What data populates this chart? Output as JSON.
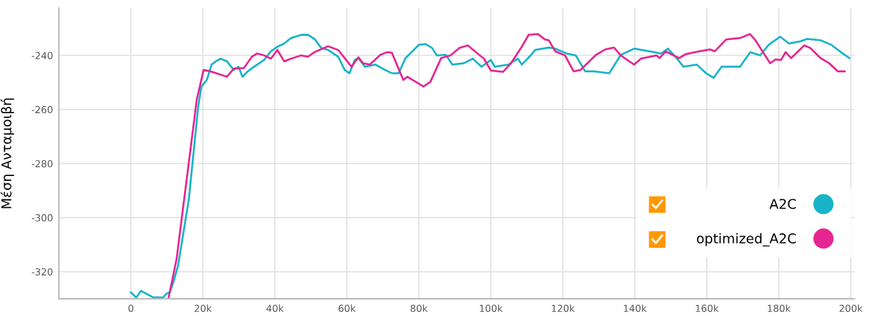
{
  "chart_data": {
    "type": "line",
    "ylabel": "Μέση Ανταμοιβή",
    "xlim": [
      -20000,
      201000
    ],
    "ylim": [
      -330,
      -222.5
    ],
    "xticks": [
      {
        "value": 0,
        "label": "0"
      },
      {
        "value": 20000,
        "label": "20k"
      },
      {
        "value": 40000,
        "label": "40k"
      },
      {
        "value": 60000,
        "label": "60k"
      },
      {
        "value": 80000,
        "label": "80k"
      },
      {
        "value": 100000,
        "label": "100k"
      },
      {
        "value": 120000,
        "label": "120k"
      },
      {
        "value": 140000,
        "label": "140k"
      },
      {
        "value": 160000,
        "label": "160k"
      },
      {
        "value": 180000,
        "label": "180k"
      },
      {
        "value": 200000,
        "label": "200k"
      }
    ],
    "yticks": [
      -320,
      -300,
      -280,
      -260,
      -240
    ],
    "grid": true,
    "legend": "bottom right",
    "marker": "none",
    "line_style": "solid",
    "series": [
      {
        "name": "A2C",
        "color": "#17b3c9",
        "x": [
          0,
          1500,
          2800,
          4300,
          6200,
          9000,
          9900,
          10800,
          11800,
          13100,
          14600,
          16100,
          17400,
          18700,
          19600,
          21100,
          22400,
          23600,
          24900,
          26700,
          28600,
          29900,
          31000,
          32300,
          34200,
          37000,
          38900,
          40700,
          42600,
          44500,
          47300,
          49200,
          51000,
          52900,
          54800,
          57600,
          59400,
          60700,
          62200,
          63200,
          65000,
          67900,
          70700,
          72500,
          74400,
          76300,
          80000,
          81900,
          83700,
          85000,
          87500,
          89300,
          92500,
          95000,
          97400,
          100000,
          101100,
          104900,
          107500,
          108600,
          111200,
          112300,
          116100,
          117900,
          121100,
          123600,
          126200,
          128600,
          132900,
          136100,
          139800,
          144100,
          147300,
          149200,
          151600,
          153500,
          157200,
          159800,
          161900,
          164100,
          169200,
          172100,
          174800,
          177200,
          180400,
          182800,
          186000,
          187900,
          191600,
          194600,
          197800,
          199600
        ],
        "values": [
          -327.6,
          -329.6,
          -327.1,
          -328.1,
          -329.5,
          -329.5,
          -328.1,
          -327.6,
          -323.9,
          -317.8,
          -305.5,
          -293.3,
          -276.1,
          -258.9,
          -251.5,
          -249.1,
          -243.4,
          -242.2,
          -241.2,
          -242.2,
          -245.4,
          -244.2,
          -247.9,
          -246.1,
          -244.2,
          -241.7,
          -238.5,
          -236.8,
          -235.6,
          -233.6,
          -232.4,
          -232.4,
          -233.9,
          -237.3,
          -238.0,
          -240.5,
          -245.4,
          -246.6,
          -241.7,
          -241.0,
          -244.2,
          -243.4,
          -245.4,
          -246.6,
          -246.6,
          -241.0,
          -236.1,
          -235.8,
          -237.3,
          -240.0,
          -239.8,
          -243.4,
          -242.9,
          -241.2,
          -244.2,
          -241.7,
          -244.2,
          -243.4,
          -241.2,
          -243.4,
          -239.8,
          -238.0,
          -237.1,
          -237.5,
          -239.3,
          -240.0,
          -245.9,
          -245.9,
          -246.6,
          -239.8,
          -237.5,
          -238.5,
          -239.3,
          -237.5,
          -241.0,
          -244.2,
          -243.4,
          -246.6,
          -248.3,
          -244.2,
          -244.2,
          -238.8,
          -240.0,
          -236.1,
          -233.1,
          -235.6,
          -234.8,
          -233.9,
          -234.4,
          -236.1,
          -239.3,
          -241.0
        ]
      },
      {
        "name": "optimized_A2C",
        "color": "#e52592",
        "x": [
          10500,
          12700,
          15500,
          18300,
          20200,
          22100,
          26700,
          28600,
          31400,
          33600,
          35100,
          37000,
          38900,
          40700,
          42600,
          44500,
          47300,
          49200,
          51000,
          54800,
          57600,
          61300,
          63200,
          64500,
          66400,
          69300,
          71200,
          72500,
          75700,
          76800,
          81300,
          83200,
          86200,
          88800,
          91200,
          93600,
          96300,
          98100,
          100000,
          103400,
          105600,
          108600,
          110500,
          113100,
          115000,
          116100,
          117900,
          120600,
          123000,
          124900,
          129200,
          131800,
          134200,
          136100,
          139800,
          141700,
          146000,
          146900,
          148600,
          152300,
          154200,
          157900,
          160900,
          162200,
          165400,
          169200,
          172000,
          173500,
          177600,
          179100,
          180600,
          181900,
          183400,
          187100,
          188800,
          191600,
          194000,
          196400,
          198300
        ],
        "values": [
          -329.5,
          -315.3,
          -285.9,
          -256.4,
          -245.4,
          -245.9,
          -247.9,
          -244.9,
          -244.7,
          -240.5,
          -239.3,
          -240.0,
          -241.2,
          -238.0,
          -242.2,
          -241.2,
          -240.0,
          -240.5,
          -238.8,
          -236.6,
          -238.0,
          -244.2,
          -240.7,
          -242.9,
          -243.4,
          -239.8,
          -238.8,
          -239.0,
          -249.1,
          -247.9,
          -251.5,
          -249.8,
          -241.0,
          -240.0,
          -237.3,
          -236.3,
          -239.3,
          -241.2,
          -245.6,
          -246.1,
          -242.9,
          -236.8,
          -232.4,
          -232.1,
          -234.1,
          -234.4,
          -238.5,
          -240.0,
          -245.9,
          -245.4,
          -239.8,
          -237.8,
          -237.1,
          -240.0,
          -243.4,
          -241.2,
          -240.0,
          -241.0,
          -238.5,
          -241.0,
          -239.5,
          -238.5,
          -237.8,
          -238.5,
          -234.1,
          -233.6,
          -232.1,
          -234.4,
          -242.9,
          -241.5,
          -241.7,
          -238.8,
          -241.0,
          -236.3,
          -237.3,
          -241.0,
          -242.9,
          -245.9,
          -245.9
        ]
      }
    ]
  }
}
